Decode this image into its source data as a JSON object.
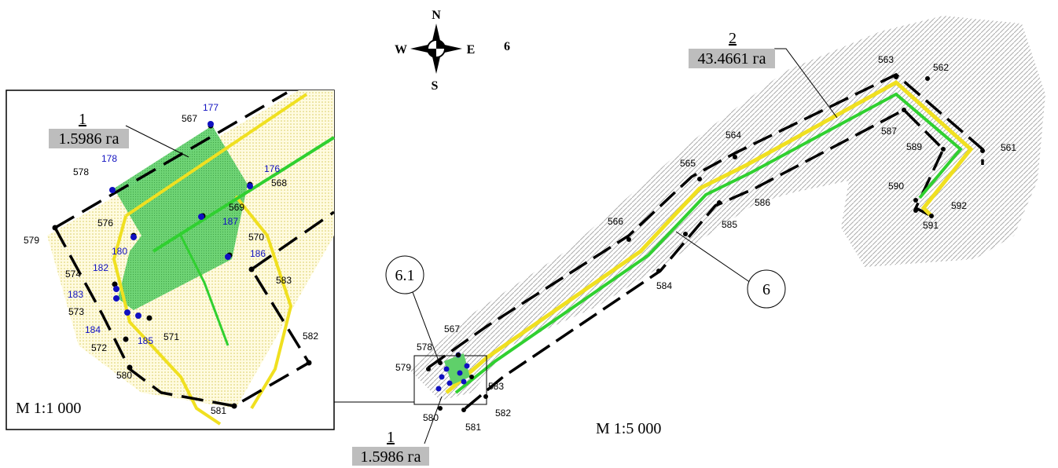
{
  "compass": {
    "north": "N",
    "south": "S",
    "east": "E",
    "west": "W"
  },
  "sheet_number": "6",
  "main_map": {
    "scale": "M 1:5 000",
    "callouts": [
      "6.1",
      "6"
    ],
    "parcels": [
      {
        "number": "1",
        "area": "1.5986 га"
      },
      {
        "number": "2",
        "area": "43.4661 га"
      }
    ],
    "points": [
      "561",
      "562",
      "563",
      "564",
      "565",
      "566",
      "567",
      "578",
      "579",
      "580",
      "581",
      "582",
      "583",
      "584",
      "585",
      "586",
      "587",
      "589",
      "590",
      "591",
      "592"
    ]
  },
  "inset": {
    "scale": "M 1:1 000",
    "parcel": {
      "number": "1",
      "area": "1.5986 га"
    },
    "points": [
      "567",
      "568",
      "569",
      "570",
      "571",
      "572",
      "573",
      "574",
      "576",
      "578",
      "579",
      "580",
      "581",
      "582",
      "583"
    ],
    "blue_points": [
      "176",
      "177",
      "178",
      "180",
      "182",
      "183",
      "184",
      "185",
      "186",
      "187"
    ]
  }
}
